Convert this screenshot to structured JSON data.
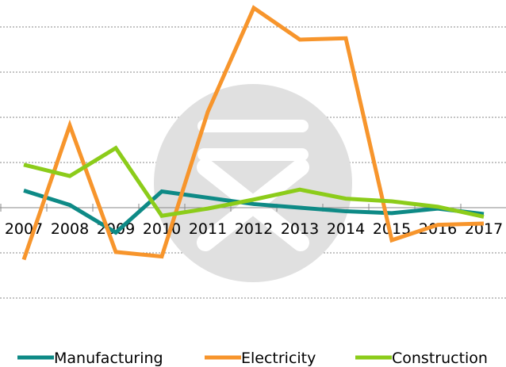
{
  "chart_data": {
    "type": "line",
    "title": "",
    "xlabel": "",
    "ylabel": "",
    "categories": [
      "2007",
      "2008",
      "2009",
      "2010",
      "2011",
      "2012",
      "2013",
      "2014",
      "2015",
      "2016",
      "2017"
    ],
    "ylim": [
      -2.0,
      4.5
    ],
    "grid": true,
    "y_tick_labels_visible": false,
    "legend_position": "bottom",
    "series": [
      {
        "name": "Manufacturing",
        "color": "#0e8a86",
        "values": [
          0.38,
          0.06,
          -0.55,
          0.36,
          0.22,
          0.08,
          0.0,
          -0.08,
          -0.12,
          -0.02,
          -0.14
        ]
      },
      {
        "name": "Electricity",
        "color": "#f7952c",
        "values": [
          -1.15,
          1.82,
          -0.98,
          -1.08,
          2.12,
          4.42,
          3.72,
          3.75,
          -0.72,
          -0.38,
          -0.35
        ]
      },
      {
        "name": "Construction",
        "color": "#8ccc1a",
        "values": [
          0.95,
          0.7,
          1.32,
          -0.18,
          -0.02,
          0.18,
          0.4,
          0.2,
          0.14,
          0.02,
          -0.2
        ]
      }
    ],
    "watermark": {
      "icon": "rupee-icon",
      "color": "#e0e0e0"
    }
  }
}
